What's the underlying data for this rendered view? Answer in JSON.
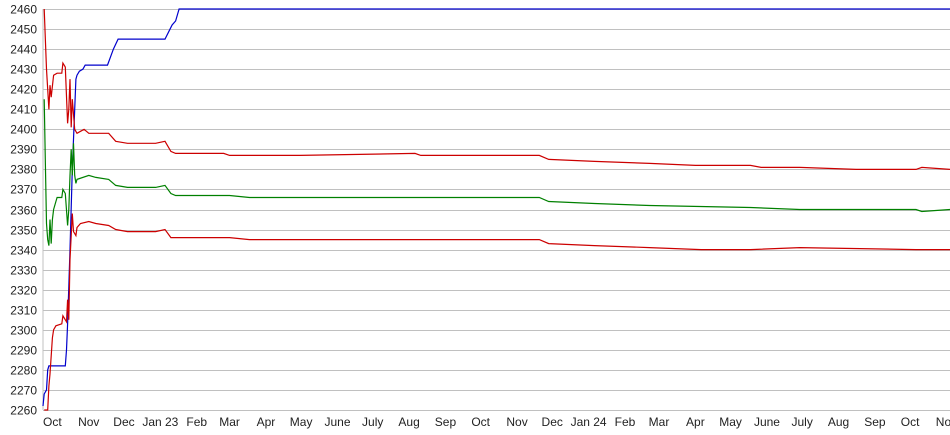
{
  "chart_data": {
    "type": "line",
    "title": "",
    "xlabel": "",
    "ylabel": "",
    "xlim": [
      "2022-10-07",
      "2024-11-18"
    ],
    "ylim": [
      2260,
      2460
    ],
    "grid": true,
    "legend": "none",
    "y_ticks": [
      2260,
      2270,
      2280,
      2290,
      2300,
      2310,
      2320,
      2330,
      2340,
      2350,
      2360,
      2370,
      2380,
      2390,
      2400,
      2410,
      2420,
      2430,
      2440,
      2450,
      2460
    ],
    "x_ticks": [
      {
        "label": "Oct",
        "date": "2022-10-15"
      },
      {
        "label": "Nov",
        "date": "2022-11-15"
      },
      {
        "label": "Dec",
        "date": "2022-12-15"
      },
      {
        "label": "Jan 23",
        "date": "2023-01-15"
      },
      {
        "label": "Feb",
        "date": "2023-02-15"
      },
      {
        "label": "Mar",
        "date": "2023-03-15"
      },
      {
        "label": "Apr",
        "date": "2023-04-15"
      },
      {
        "label": "May",
        "date": "2023-05-15"
      },
      {
        "label": "June",
        "date": "2023-06-15"
      },
      {
        "label": "July",
        "date": "2023-07-15"
      },
      {
        "label": "Aug",
        "date": "2023-08-15"
      },
      {
        "label": "Sep",
        "date": "2023-09-15"
      },
      {
        "label": "Oct",
        "date": "2023-10-15"
      },
      {
        "label": "Nov",
        "date": "2023-11-15"
      },
      {
        "label": "Dec",
        "date": "2023-12-15"
      },
      {
        "label": "Jan 24",
        "date": "2024-01-15"
      },
      {
        "label": "Feb",
        "date": "2024-02-15"
      },
      {
        "label": "Mar",
        "date": "2024-03-15"
      },
      {
        "label": "Apr",
        "date": "2024-04-15"
      },
      {
        "label": "May",
        "date": "2024-05-15"
      },
      {
        "label": "June",
        "date": "2024-06-15"
      },
      {
        "label": "July",
        "date": "2024-07-15"
      },
      {
        "label": "Aug",
        "date": "2024-08-15"
      },
      {
        "label": "Sep",
        "date": "2024-09-15"
      },
      {
        "label": "Oct",
        "date": "2024-10-15"
      },
      {
        "label": "Nov",
        "date": "2024-11-15"
      }
    ],
    "series": [
      {
        "color": "#0000cc",
        "points": [
          [
            "2022-10-07",
            2262
          ],
          [
            "2022-10-08",
            2268
          ],
          [
            "2022-10-10",
            2270
          ],
          [
            "2022-10-11",
            2280
          ],
          [
            "2022-10-12",
            2282
          ],
          [
            "2022-10-26",
            2282
          ],
          [
            "2022-10-27",
            2290
          ],
          [
            "2022-10-28",
            2303
          ],
          [
            "2022-10-30",
            2340
          ],
          [
            "2022-11-01",
            2380
          ],
          [
            "2022-11-03",
            2410
          ],
          [
            "2022-11-04",
            2425
          ],
          [
            "2022-11-05",
            2427
          ],
          [
            "2022-11-07",
            2429
          ],
          [
            "2022-11-10",
            2430
          ],
          [
            "2022-11-12",
            2432
          ],
          [
            "2022-12-01",
            2432
          ],
          [
            "2022-12-06",
            2440
          ],
          [
            "2022-12-10",
            2445
          ],
          [
            "2023-01-19",
            2445
          ],
          [
            "2023-01-25",
            2452
          ],
          [
            "2023-01-28",
            2454
          ],
          [
            "2023-01-31",
            2460
          ],
          [
            "2024-11-18",
            2460
          ]
        ]
      },
      {
        "color": "#cc0000",
        "points": [
          [
            "2022-10-08",
            2460
          ],
          [
            "2022-10-10",
            2430
          ],
          [
            "2022-10-11",
            2420
          ],
          [
            "2022-10-12",
            2410
          ],
          [
            "2022-10-13",
            2422
          ],
          [
            "2022-10-14",
            2416
          ],
          [
            "2022-10-16",
            2427
          ],
          [
            "2022-10-19",
            2428
          ],
          [
            "2022-10-23",
            2428
          ],
          [
            "2022-10-24",
            2433
          ],
          [
            "2022-10-26",
            2431
          ],
          [
            "2022-10-28",
            2403
          ],
          [
            "2022-10-29",
            2410
          ],
          [
            "2022-10-30",
            2425
          ],
          [
            "2022-10-31",
            2401
          ],
          [
            "2022-11-01",
            2415
          ],
          [
            "2022-11-03",
            2400
          ],
          [
            "2022-11-05",
            2398
          ],
          [
            "2022-11-08",
            2399
          ],
          [
            "2022-11-11",
            2400
          ],
          [
            "2022-11-15",
            2398
          ],
          [
            "2022-11-21",
            2398
          ],
          [
            "2022-12-02",
            2398
          ],
          [
            "2022-12-08",
            2394
          ],
          [
            "2022-12-18",
            2393
          ],
          [
            "2023-01-11",
            2393
          ],
          [
            "2023-01-19",
            2394
          ],
          [
            "2023-01-24",
            2389
          ],
          [
            "2023-01-28",
            2388
          ],
          [
            "2023-03-10",
            2388
          ],
          [
            "2023-03-15",
            2387
          ],
          [
            "2023-05-14",
            2387
          ],
          [
            "2023-08-20",
            2388
          ],
          [
            "2023-08-25",
            2387
          ],
          [
            "2023-12-04",
            2387
          ],
          [
            "2023-12-12",
            2385
          ],
          [
            "2024-01-20",
            2384
          ],
          [
            "2024-03-07",
            2383
          ],
          [
            "2024-04-15",
            2382
          ],
          [
            "2024-06-01",
            2382
          ],
          [
            "2024-06-10",
            2381
          ],
          [
            "2024-07-13",
            2381
          ],
          [
            "2024-08-30",
            2380
          ],
          [
            "2024-10-20",
            2380
          ],
          [
            "2024-10-25",
            2381
          ],
          [
            "2024-11-18",
            2380
          ]
        ]
      },
      {
        "color": "#008000",
        "points": [
          [
            "2022-10-08",
            2415
          ],
          [
            "2022-10-09",
            2385
          ],
          [
            "2022-10-10",
            2353
          ],
          [
            "2022-10-11",
            2345
          ],
          [
            "2022-10-12",
            2342
          ],
          [
            "2022-10-13",
            2355
          ],
          [
            "2022-10-14",
            2343
          ],
          [
            "2022-10-15",
            2355
          ],
          [
            "2022-10-16",
            2360
          ],
          [
            "2022-10-18",
            2364
          ],
          [
            "2022-10-19",
            2366
          ],
          [
            "2022-10-23",
            2366
          ],
          [
            "2022-10-24",
            2370
          ],
          [
            "2022-10-26",
            2368
          ],
          [
            "2022-10-28",
            2352
          ],
          [
            "2022-10-29",
            2360
          ],
          [
            "2022-10-30",
            2377
          ],
          [
            "2022-10-31",
            2390
          ],
          [
            "2022-11-01",
            2377
          ],
          [
            "2022-11-02",
            2393
          ],
          [
            "2022-11-03",
            2377
          ],
          [
            "2022-11-04",
            2373
          ],
          [
            "2022-11-05",
            2375
          ],
          [
            "2022-11-15",
            2377
          ],
          [
            "2022-11-21",
            2376
          ],
          [
            "2022-12-02",
            2375
          ],
          [
            "2022-12-08",
            2372
          ],
          [
            "2022-12-18",
            2371
          ],
          [
            "2023-01-11",
            2371
          ],
          [
            "2023-01-19",
            2372
          ],
          [
            "2023-01-24",
            2368
          ],
          [
            "2023-01-28",
            2367
          ],
          [
            "2023-03-15",
            2367
          ],
          [
            "2023-04-01",
            2366
          ],
          [
            "2023-12-04",
            2366
          ],
          [
            "2023-12-12",
            2364
          ],
          [
            "2024-01-20",
            2363
          ],
          [
            "2024-03-07",
            2362
          ],
          [
            "2024-06-01",
            2361
          ],
          [
            "2024-07-13",
            2360
          ],
          [
            "2024-10-20",
            2360
          ],
          [
            "2024-10-25",
            2359
          ],
          [
            "2024-11-18",
            2360
          ]
        ]
      },
      {
        "color": "#cc0000",
        "points": [
          [
            "2022-10-08",
            2260
          ],
          [
            "2022-10-11",
            2260
          ],
          [
            "2022-10-12",
            2272
          ],
          [
            "2022-10-13",
            2278
          ],
          [
            "2022-10-14",
            2287
          ],
          [
            "2022-10-15",
            2296
          ],
          [
            "2022-10-16",
            2300
          ],
          [
            "2022-10-18",
            2302
          ],
          [
            "2022-10-23",
            2303
          ],
          [
            "2022-10-24",
            2307
          ],
          [
            "2022-10-26",
            2305
          ],
          [
            "2022-10-27",
            2304
          ],
          [
            "2022-10-28",
            2315
          ],
          [
            "2022-10-29",
            2305
          ],
          [
            "2022-10-30",
            2335
          ],
          [
            "2022-10-31",
            2347
          ],
          [
            "2022-11-01",
            2358
          ],
          [
            "2022-11-02",
            2349
          ],
          [
            "2022-11-03",
            2348
          ],
          [
            "2022-11-04",
            2347
          ],
          [
            "2022-11-05",
            2351
          ],
          [
            "2022-11-08",
            2353
          ],
          [
            "2022-11-15",
            2354
          ],
          [
            "2022-11-21",
            2353
          ],
          [
            "2022-12-02",
            2352
          ],
          [
            "2022-12-08",
            2350
          ],
          [
            "2022-12-18",
            2349
          ],
          [
            "2023-01-11",
            2349
          ],
          [
            "2023-01-19",
            2350
          ],
          [
            "2023-01-24",
            2346
          ],
          [
            "2023-01-28",
            2346
          ],
          [
            "2023-03-15",
            2346
          ],
          [
            "2023-04-01",
            2345
          ],
          [
            "2023-12-04",
            2345
          ],
          [
            "2023-12-12",
            2343
          ],
          [
            "2024-01-20",
            2342
          ],
          [
            "2024-03-07",
            2341
          ],
          [
            "2024-04-20",
            2340
          ],
          [
            "2024-06-01",
            2340
          ],
          [
            "2024-07-13",
            2341
          ],
          [
            "2024-10-20",
            2340
          ],
          [
            "2024-11-18",
            2340
          ]
        ]
      }
    ]
  }
}
